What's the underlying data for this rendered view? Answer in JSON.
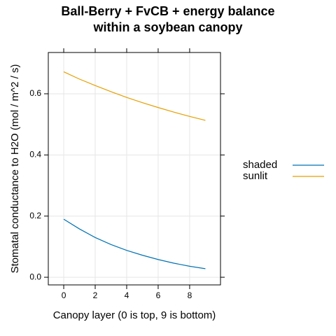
{
  "chart_data": {
    "type": "line",
    "title": [
      "Ball-Berry + FvCB + energy balance",
      "within a soybean canopy"
    ],
    "x_label": "Canopy layer (0 is top, 9 is bottom)",
    "y_label": "Stomatal conductance to H2O (mol / m^2 / s)",
    "x": [
      0,
      1,
      2,
      3,
      4,
      5,
      6,
      7,
      8,
      9
    ],
    "series": [
      {
        "name": "shaded",
        "color": "#0072b2",
        "values": [
          0.19,
          0.158,
          0.13,
          0.107,
          0.088,
          0.072,
          0.058,
          0.046,
          0.036,
          0.028
        ]
      },
      {
        "name": "sunlit",
        "color": "#e69f00",
        "values": [
          0.672,
          0.648,
          0.627,
          0.607,
          0.588,
          0.571,
          0.555,
          0.54,
          0.526,
          0.513
        ]
      }
    ],
    "xlim": [
      -0.98,
      9.96
    ],
    "xticks": [
      0,
      2,
      4,
      6,
      8
    ],
    "ylim": [
      -0.025,
      0.735
    ],
    "yticks": [
      {
        "value": 0,
        "label": "0.0"
      },
      0.2,
      0.4,
      0.6
    ],
    "grid": true,
    "legend": "right"
  }
}
